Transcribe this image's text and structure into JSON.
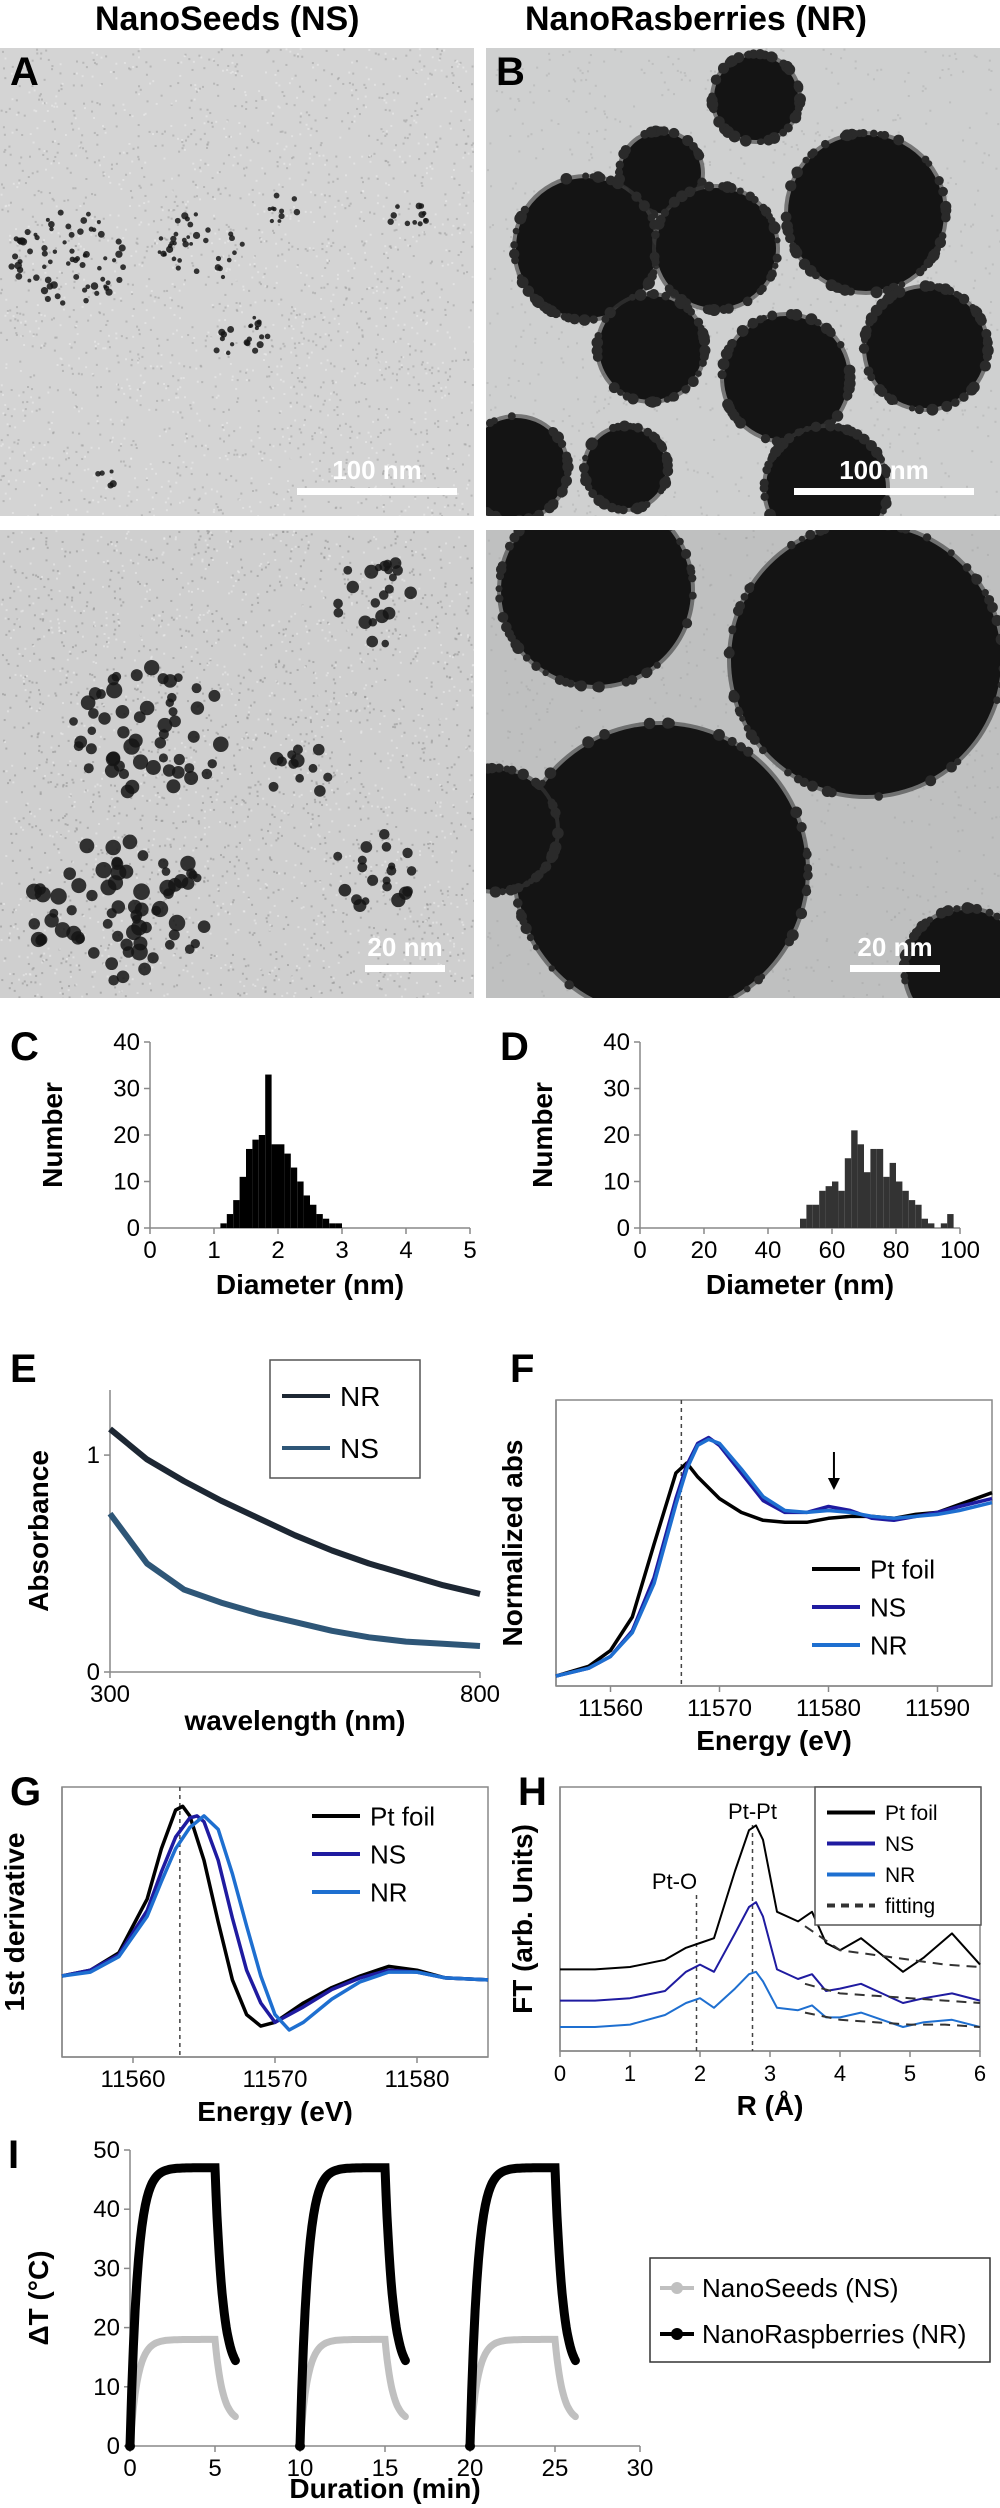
{
  "headers": {
    "ns": "NanoSeeds (NS)",
    "nr": "NanoRasberries (NR)"
  },
  "panel_labels": {
    "A": "A",
    "B": "B",
    "C": "C",
    "D": "D",
    "E": "E",
    "F": "F",
    "G": "G",
    "H": "H",
    "I": "I"
  },
  "scale_bars": {
    "a": "100 nm",
    "b": "100 nm",
    "a2": "20 nm",
    "b2": "20 nm"
  },
  "chart_data": [
    {
      "id": "C",
      "type": "bar",
      "xlabel": "Diameter (nm)",
      "ylabel": "Number",
      "xlim": [
        0,
        5
      ],
      "ylim": [
        0,
        40
      ],
      "xticks": [
        "0",
        "1",
        "2",
        "3",
        "4",
        "5"
      ],
      "yticks": [
        "0",
        "10",
        "20",
        "30",
        "40"
      ],
      "x": [
        1.1,
        1.2,
        1.3,
        1.4,
        1.5,
        1.6,
        1.7,
        1.8,
        1.9,
        2.0,
        2.1,
        2.2,
        2.3,
        2.4,
        2.5,
        2.6,
        2.7,
        2.8,
        2.9
      ],
      "values": [
        1,
        3,
        6,
        11,
        17,
        19,
        20,
        33,
        18,
        18,
        16,
        13,
        10,
        7,
        5,
        3,
        2,
        1,
        1
      ]
    },
    {
      "id": "D",
      "type": "bar",
      "xlabel": "Diameter (nm)",
      "ylabel": "Number",
      "xlim": [
        0,
        100
      ],
      "ylim": [
        0,
        40
      ],
      "xticks": [
        "0",
        "20",
        "40",
        "60",
        "80",
        "100"
      ],
      "yticks": [
        "0",
        "10",
        "20",
        "30",
        "40"
      ],
      "x": [
        50,
        52,
        54,
        56,
        58,
        60,
        62,
        64,
        66,
        68,
        70,
        72,
        74,
        76,
        78,
        80,
        82,
        84,
        86,
        88,
        90,
        92,
        94,
        96
      ],
      "values": [
        2,
        5,
        5,
        8,
        9,
        10,
        8,
        15,
        21,
        18,
        12,
        17,
        17,
        11,
        14,
        10,
        8,
        6,
        5,
        2,
        1,
        0,
        1,
        3
      ]
    },
    {
      "id": "E",
      "type": "line",
      "xlabel": "wavelength (nm)",
      "ylabel": "Absorbance",
      "xlim": [
        300,
        800
      ],
      "ylim": [
        0,
        1.3
      ],
      "xticks": [
        "300",
        "800"
      ],
      "yticks": [
        "0",
        "1"
      ],
      "series": [
        {
          "name": "NR",
          "color": "#1d2733",
          "x": [
            300,
            350,
            400,
            450,
            500,
            550,
            600,
            650,
            700,
            750,
            800
          ],
          "y": [
            1.12,
            0.98,
            0.88,
            0.79,
            0.71,
            0.63,
            0.56,
            0.5,
            0.45,
            0.4,
            0.36
          ]
        },
        {
          "name": "NS",
          "color": "#2e5677",
          "x": [
            300,
            350,
            400,
            450,
            500,
            550,
            600,
            650,
            700,
            750,
            800
          ],
          "y": [
            0.73,
            0.5,
            0.38,
            0.32,
            0.27,
            0.23,
            0.19,
            0.16,
            0.14,
            0.13,
            0.12
          ]
        }
      ],
      "legend": "top-right"
    },
    {
      "id": "F",
      "type": "line",
      "xlabel": "Energy (eV)",
      "ylabel": "Normalized abs",
      "xlim": [
        11555,
        11595
      ],
      "ylim": [
        0,
        1.45
      ],
      "xticks": [
        "11560",
        "11570",
        "11580",
        "11590"
      ],
      "reference_line_x": 11566.5,
      "series": [
        {
          "name": "Pt foil",
          "color": "#000000",
          "x": [
            11555,
            11558,
            11560,
            11562,
            11564,
            11566,
            11567,
            11568,
            11570,
            11572,
            11574,
            11576,
            11578,
            11580,
            11582,
            11584,
            11586,
            11588,
            11590,
            11592,
            11595
          ],
          "y": [
            0.05,
            0.1,
            0.18,
            0.35,
            0.72,
            1.08,
            1.13,
            1.06,
            0.95,
            0.88,
            0.84,
            0.83,
            0.83,
            0.85,
            0.86,
            0.86,
            0.85,
            0.87,
            0.88,
            0.92,
            0.98
          ]
        },
        {
          "name": "NS",
          "color": "#1f1ba0",
          "x": [
            11555,
            11558,
            11560,
            11562,
            11564,
            11566,
            11567,
            11568,
            11569,
            11570,
            11572,
            11574,
            11576,
            11578,
            11580,
            11582,
            11584,
            11586,
            11588,
            11590,
            11592,
            11595
          ],
          "y": [
            0.05,
            0.09,
            0.15,
            0.28,
            0.55,
            0.95,
            1.12,
            1.23,
            1.26,
            1.22,
            1.08,
            0.94,
            0.88,
            0.88,
            0.91,
            0.89,
            0.85,
            0.84,
            0.86,
            0.88,
            0.91,
            0.95
          ]
        },
        {
          "name": "NR",
          "color": "#1e6fd0",
          "x": [
            11555,
            11558,
            11560,
            11562,
            11564,
            11566,
            11567,
            11568,
            11569,
            11570,
            11572,
            11574,
            11576,
            11578,
            11580,
            11582,
            11584,
            11586,
            11588,
            11590,
            11592,
            11595
          ],
          "y": [
            0.05,
            0.09,
            0.15,
            0.27,
            0.52,
            0.92,
            1.1,
            1.22,
            1.25,
            1.23,
            1.1,
            0.96,
            0.89,
            0.88,
            0.89,
            0.88,
            0.86,
            0.85,
            0.86,
            0.87,
            0.89,
            0.93
          ]
        }
      ],
      "legend": "bottom-right"
    },
    {
      "id": "G",
      "type": "line",
      "xlabel": "Energy (eV)",
      "ylabel": "1st derivative",
      "xlim": [
        11555,
        11585
      ],
      "ylim": [
        -0.4,
        1.0
      ],
      "xticks": [
        "11560",
        "11570",
        "11580"
      ],
      "reference_line_x": 11563.3,
      "series": [
        {
          "name": "Pt foil",
          "color": "#000000",
          "x": [
            11555,
            11557,
            11559,
            11561,
            11562,
            11563,
            11563.5,
            11564,
            11565,
            11566,
            11567,
            11568,
            11569,
            11570,
            11572,
            11574,
            11576,
            11578,
            11580,
            11582,
            11585
          ],
          "y": [
            0.02,
            0.05,
            0.14,
            0.42,
            0.68,
            0.88,
            0.9,
            0.85,
            0.62,
            0.3,
            0.0,
            -0.18,
            -0.24,
            -0.22,
            -0.12,
            -0.04,
            0.02,
            0.07,
            0.05,
            0.01,
            0.0
          ]
        },
        {
          "name": "NS",
          "color": "#1f1ba0",
          "x": [
            11555,
            11557,
            11559,
            11561,
            11562,
            11563,
            11564,
            11564.5,
            11565,
            11566,
            11567,
            11568,
            11569,
            11570,
            11572,
            11574,
            11576,
            11578,
            11580,
            11582,
            11585
          ],
          "y": [
            0.02,
            0.05,
            0.13,
            0.36,
            0.56,
            0.74,
            0.84,
            0.85,
            0.82,
            0.62,
            0.32,
            0.05,
            -0.12,
            -0.22,
            -0.14,
            -0.05,
            0.01,
            0.05,
            0.04,
            0.01,
            0.0
          ]
        },
        {
          "name": "NR",
          "color": "#1e6fd0",
          "x": [
            11555,
            11557,
            11559,
            11561,
            11562,
            11563,
            11564,
            11565,
            11566,
            11567,
            11568,
            11569,
            11570,
            11571,
            11572,
            11574,
            11576,
            11578,
            11580,
            11582,
            11585
          ],
          "y": [
            0.02,
            0.04,
            0.12,
            0.33,
            0.51,
            0.68,
            0.79,
            0.85,
            0.78,
            0.55,
            0.28,
            0.02,
            -0.18,
            -0.26,
            -0.22,
            -0.1,
            -0.01,
            0.04,
            0.04,
            0.01,
            0.0
          ]
        }
      ],
      "legend": "top-right"
    },
    {
      "id": "H",
      "type": "line",
      "xlabel": "R (Å)",
      "ylabel": "FT (arb. Units)",
      "xlim": [
        0,
        6
      ],
      "ylim": [
        0,
        1.1
      ],
      "xticks": [
        "0",
        "1",
        "2",
        "3",
        "4",
        "5",
        "6"
      ],
      "annotations": [
        {
          "text": "Pt-O",
          "x": 1.95
        },
        {
          "text": "Pt-Pt",
          "x": 2.75
        }
      ],
      "series": [
        {
          "name": "Pt foil",
          "color": "#000000",
          "x": [
            0,
            0.5,
            1.0,
            1.5,
            1.8,
            2.0,
            2.2,
            2.5,
            2.7,
            2.8,
            2.9,
            3.1,
            3.4,
            3.6,
            3.8,
            4.0,
            4.3,
            4.6,
            4.9,
            5.2,
            5.6,
            6.0
          ],
          "y": [
            0.34,
            0.34,
            0.35,
            0.38,
            0.43,
            0.45,
            0.47,
            0.75,
            0.92,
            0.94,
            0.88,
            0.58,
            0.54,
            0.58,
            0.45,
            0.42,
            0.47,
            0.4,
            0.33,
            0.39,
            0.49,
            0.36
          ]
        },
        {
          "name": "NS",
          "color": "#1f1ba0",
          "x": [
            0,
            0.5,
            1.0,
            1.5,
            1.8,
            2.0,
            2.2,
            2.5,
            2.7,
            2.8,
            2.9,
            3.1,
            3.4,
            3.6,
            3.8,
            4.0,
            4.3,
            4.6,
            4.9,
            5.2,
            5.6,
            6.0
          ],
          "y": [
            0.21,
            0.21,
            0.22,
            0.25,
            0.33,
            0.36,
            0.33,
            0.49,
            0.6,
            0.62,
            0.56,
            0.34,
            0.3,
            0.32,
            0.25,
            0.26,
            0.28,
            0.24,
            0.2,
            0.22,
            0.24,
            0.21
          ]
        },
        {
          "name": "NR",
          "color": "#1e6fd0",
          "x": [
            0,
            0.5,
            1.0,
            1.5,
            1.8,
            2.0,
            2.2,
            2.5,
            2.7,
            2.8,
            2.9,
            3.1,
            3.4,
            3.6,
            3.8,
            4.0,
            4.3,
            4.6,
            4.9,
            5.2,
            5.6,
            6.0
          ],
          "y": [
            0.1,
            0.1,
            0.11,
            0.15,
            0.2,
            0.22,
            0.18,
            0.26,
            0.32,
            0.33,
            0.29,
            0.18,
            0.17,
            0.19,
            0.14,
            0.14,
            0.16,
            0.13,
            0.1,
            0.12,
            0.13,
            0.1
          ]
        },
        {
          "name": "fitting",
          "color": "#333333",
          "dash": true,
          "x": [
            3.5,
            4.0,
            4.5,
            5.0,
            5.5,
            6.0
          ],
          "y": [
            0.52,
            0.42,
            0.4,
            0.38,
            0.36,
            0.35
          ]
        },
        {
          "name": "",
          "color": "#333333",
          "dash": true,
          "hidden_in_legend": true,
          "x": [
            3.5,
            4.0,
            4.5,
            5.0,
            5.5,
            6.0
          ],
          "y": [
            0.28,
            0.24,
            0.23,
            0.22,
            0.21,
            0.2
          ]
        },
        {
          "name": "",
          "color": "#333333",
          "dash": true,
          "hidden_in_legend": true,
          "x": [
            3.5,
            4.0,
            4.5,
            5.0,
            5.5,
            6.0
          ],
          "y": [
            0.16,
            0.13,
            0.12,
            0.11,
            0.11,
            0.1
          ]
        }
      ],
      "legend": "top-right"
    },
    {
      "id": "I",
      "type": "scatter",
      "xlabel": "Duration (min)",
      "ylabel": "ΔT (°C)",
      "xlim": [
        0,
        30
      ],
      "ylim": [
        0,
        50
      ],
      "xticks": [
        "0",
        "5",
        "10",
        "15",
        "20",
        "25",
        "30"
      ],
      "yticks": [
        "0",
        "10",
        "20",
        "30",
        "40",
        "50"
      ],
      "cycles_start": [
        0,
        10,
        20
      ],
      "series": [
        {
          "name": "NanoSeeds (NS)",
          "color": "#c0c0c0",
          "plateau": 18,
          "heat_end": 5.0,
          "cool_end": 6.2,
          "cool_floor": 4
        },
        {
          "name": "NanoRaspberries (NR)",
          "color": "#000000",
          "plateau": 47,
          "heat_end": 5.0,
          "cool_end": 6.2,
          "cool_floor": 12
        }
      ],
      "legend": "right"
    }
  ]
}
